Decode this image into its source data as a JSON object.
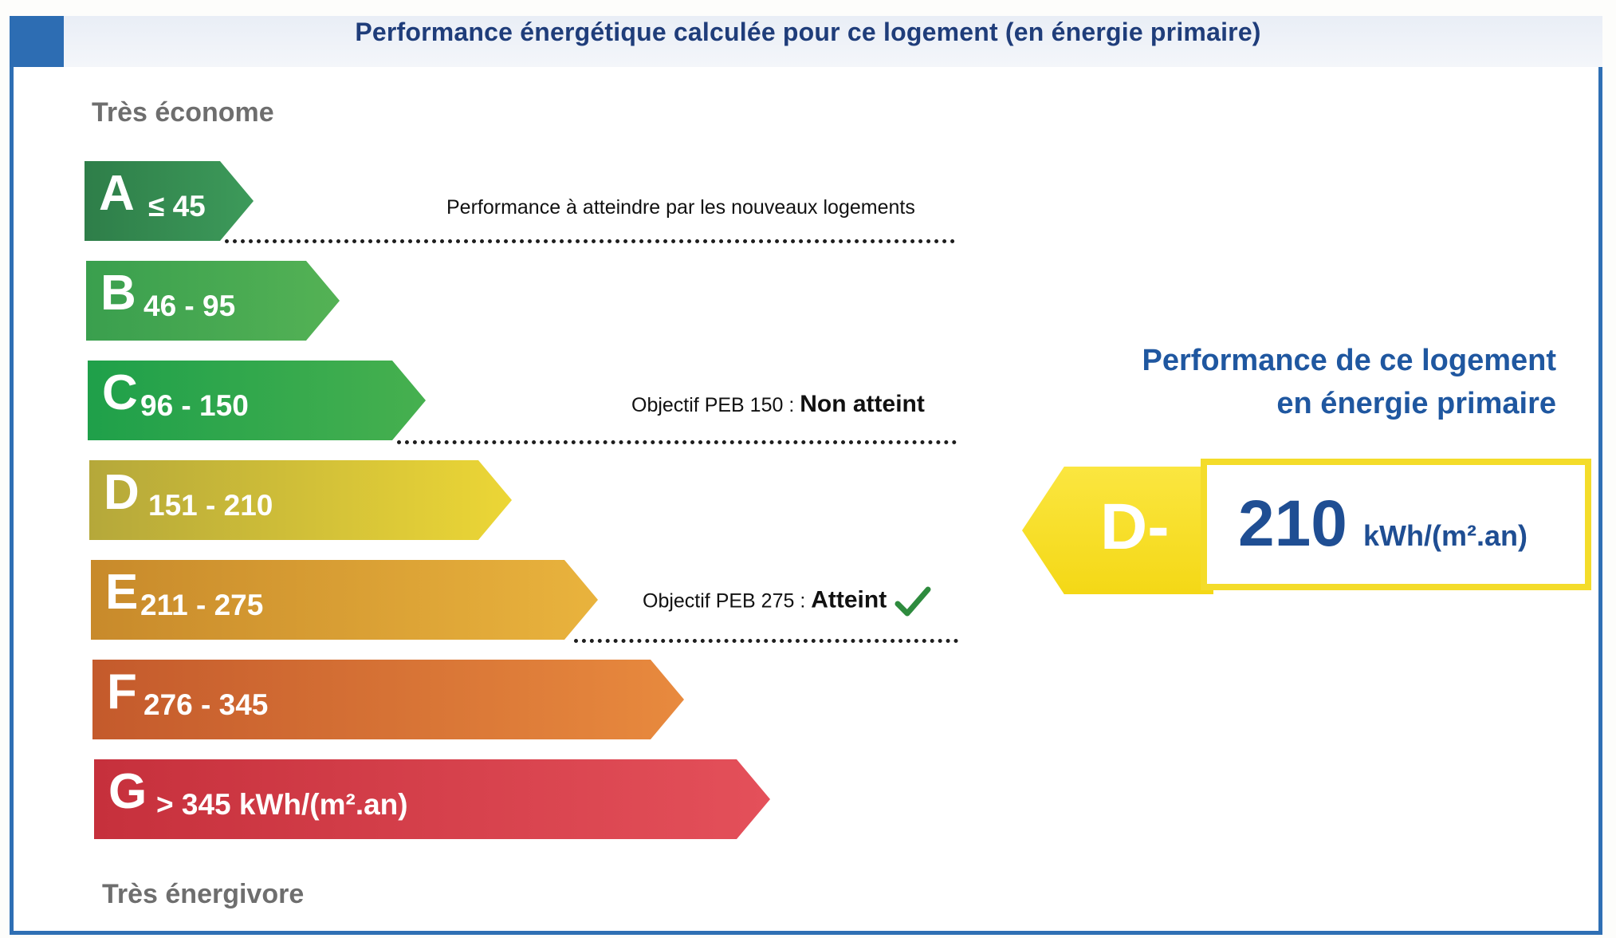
{
  "header": {
    "title": "Performance énergétique calculée pour ce logement (en énergie primaire)"
  },
  "scale": {
    "top_label": "Très économe",
    "bottom_label": "Très énergivore"
  },
  "classes": [
    {
      "letter": "A",
      "range": "≤ 45",
      "color_start": "#2e7e49",
      "color_end": "#3d9a5a"
    },
    {
      "letter": "B",
      "range": "46 - 95",
      "color_start": "#3a9f4e",
      "color_end": "#54b255"
    },
    {
      "letter": "C",
      "range": "96 - 150",
      "color_start": "#1fa04a",
      "color_end": "#46b04f"
    },
    {
      "letter": "D",
      "range": "151 - 210",
      "color_start": "#b5a83a",
      "color_end": "#ecd636"
    },
    {
      "letter": "E",
      "range": "211 - 275",
      "color_start": "#c88a2b",
      "color_end": "#e9b33d"
    },
    {
      "letter": "F",
      "range": "276 - 345",
      "color_start": "#c45a2c",
      "color_end": "#e88a3e"
    },
    {
      "letter": "G",
      "range": "> 345  kWh/(m².an)",
      "color_start": "#c6303c",
      "color_end": "#e4505a"
    }
  ],
  "notes": {
    "new_housing": "Performance à atteindre par les nouveaux logements",
    "peb150_prefix": "Objectif PEB 150 : ",
    "peb150_status": "Non atteint",
    "peb275_prefix": "Objectif PEB 275 : ",
    "peb275_status": "Atteint"
  },
  "result": {
    "title_line1": "Performance de ce logement",
    "title_line2": "en énergie primaire",
    "class": "D-",
    "value": "210",
    "unit": "kWh/(m².an)",
    "badge_color": "#f4d816",
    "check_color": "#2e8b3e"
  }
}
